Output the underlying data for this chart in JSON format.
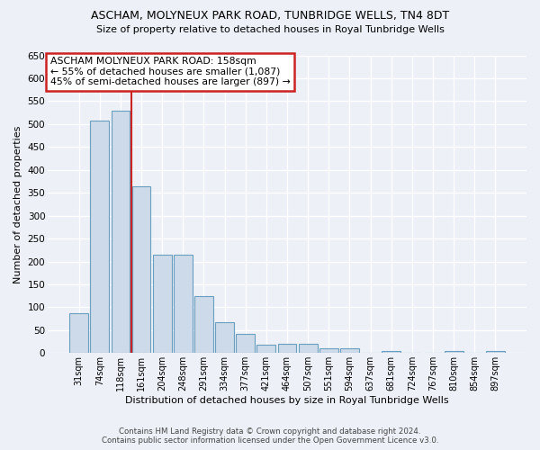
{
  "title1": "ASCHAM, MOLYNEUX PARK ROAD, TUNBRIDGE WELLS, TN4 8DT",
  "title2": "Size of property relative to detached houses in Royal Tunbridge Wells",
  "xlabel": "Distribution of detached houses by size in Royal Tunbridge Wells",
  "ylabel": "Number of detached properties",
  "footer1": "Contains HM Land Registry data © Crown copyright and database right 2024.",
  "footer2": "Contains public sector information licensed under the Open Government Licence v3.0.",
  "annotation_line1": "ASCHAM MOLYNEUX PARK ROAD: 158sqm",
  "annotation_line2": "← 55% of detached houses are smaller (1,087)",
  "annotation_line3": "45% of semi-detached houses are larger (897) →",
  "bar_color": "#ccdaea",
  "bar_edge_color": "#6a9fc0",
  "vline_color": "#cc2222",
  "vline_x": 2.5,
  "categories": [
    "31sqm",
    "74sqm",
    "118sqm",
    "161sqm",
    "204sqm",
    "248sqm",
    "291sqm",
    "334sqm",
    "377sqm",
    "421sqm",
    "464sqm",
    "507sqm",
    "551sqm",
    "594sqm",
    "637sqm",
    "681sqm",
    "724sqm",
    "767sqm",
    "810sqm",
    "854sqm",
    "897sqm"
  ],
  "values": [
    88,
    507,
    530,
    365,
    215,
    215,
    125,
    68,
    42,
    18,
    20,
    20,
    10,
    10,
    0,
    5,
    0,
    0,
    5,
    0,
    5
  ],
  "ylim": [
    0,
    650
  ],
  "yticks": [
    0,
    50,
    100,
    150,
    200,
    250,
    300,
    350,
    400,
    450,
    500,
    550,
    600,
    650
  ],
  "background_color": "#edf1f7",
  "grid_color": "#ffffff",
  "ann_facecolor": "#ffffff",
  "ann_edgecolor": "#cc2222",
  "title1_fontsize": 9.0,
  "title2_fontsize": 8.0,
  "xlabel_fontsize": 8.0,
  "ylabel_fontsize": 8.0,
  "ann_fontsize": 7.8,
  "footer_fontsize": 6.2
}
